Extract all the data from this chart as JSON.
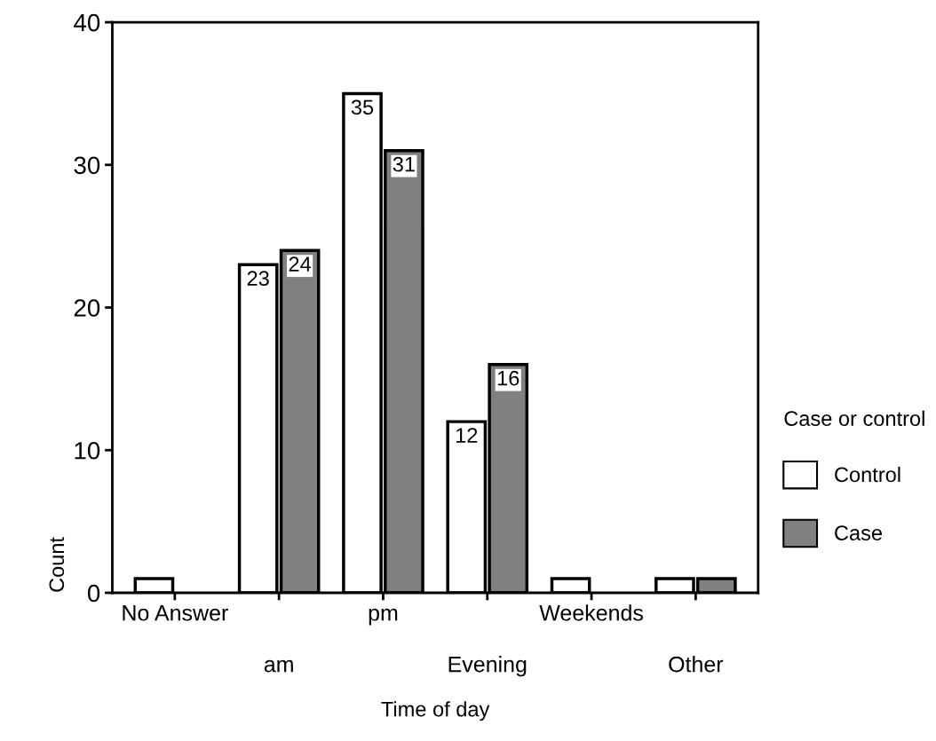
{
  "chart_data": {
    "type": "bar",
    "xlabel": "Time of day",
    "ylabel": "Count",
    "legend_title": "Case or control",
    "legend": "right",
    "grid": false,
    "categories": [
      "No Answer",
      "am",
      "pm",
      "Evening",
      "Weekends",
      "Other"
    ],
    "series": [
      {
        "name": "Control",
        "color": "#ffffff",
        "values": [
          1,
          23,
          35,
          12,
          1,
          1
        ],
        "value_labels": [
          null,
          "23",
          "35",
          "12",
          null,
          null
        ]
      },
      {
        "name": "Case",
        "color": "#808080",
        "values": [
          null,
          24,
          31,
          16,
          null,
          1
        ],
        "value_labels": [
          null,
          "24",
          "31",
          "16",
          null,
          null
        ]
      }
    ],
    "ylim": [
      0,
      40
    ],
    "yticks": [
      0,
      10,
      20,
      30,
      40
    ]
  }
}
